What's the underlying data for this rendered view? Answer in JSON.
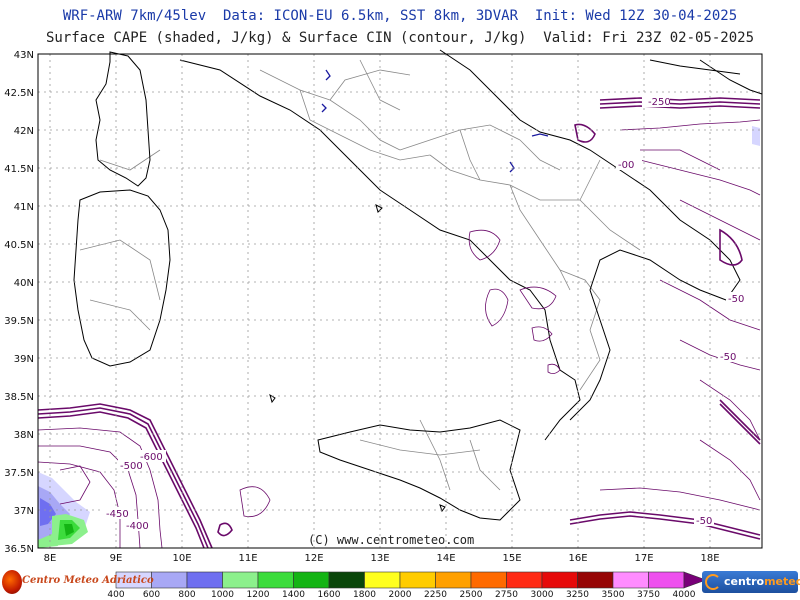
{
  "header": {
    "line1": "WRF-ARW 7km/45lev  Data: ICON-EU 6.5km, SST 8km, 3DVAR  Init: Wed 12Z 30-04-2025",
    "line2": "Surface CAPE (shaded, J/kg) & Surface CIN (contour, J/kg)  Valid: Fri 23Z 02-05-2025"
  },
  "axes": {
    "lat_labels": [
      "43N",
      "42.5N",
      "42N",
      "41.5N",
      "41N",
      "40.5N",
      "40N",
      "39.5N",
      "39N",
      "38.5N",
      "38N",
      "37.5N",
      "37N",
      "36.5N"
    ],
    "lon_labels": [
      "8E",
      "9E",
      "10E",
      "11E",
      "12E",
      "13E",
      "14E",
      "15E",
      "16E",
      "17E",
      "18E"
    ]
  },
  "cin_labels": [
    "-250",
    "-00",
    "-50",
    "-50",
    "-600",
    "-500",
    "-450",
    "-400",
    "-50"
  ],
  "copyright": "(C) www.centrometeo.com",
  "logos": {
    "left_text": "Centro Meteo Adriatico",
    "right_text_a": "centro",
    "right_text_b": "meteo"
  },
  "colorbar": {
    "labels": [
      "400",
      "600",
      "800",
      "1000",
      "1200",
      "1400",
      "1600",
      "1800",
      "2000",
      "2250",
      "2500",
      "2750",
      "3000",
      "3250",
      "3500",
      "3750",
      "4000"
    ],
    "colors": [
      "#d6d6ff",
      "#a8a8f5",
      "#6f6ff0",
      "#8cf08c",
      "#3cdc3c",
      "#14b414",
      "#0a460a",
      "#ffff1e",
      "#ffcc00",
      "#ffa000",
      "#ff6a00",
      "#ff2a14",
      "#e60a0a",
      "#960505",
      "#ff8cff",
      "#ee50ee",
      "#c800c8",
      "#780078"
    ]
  },
  "colors": {
    "coast": "#000000",
    "borders": "#888888",
    "grid": "#9a9a9a",
    "cin": "#6a0a6a",
    "cin_strong": "#3a005a"
  }
}
